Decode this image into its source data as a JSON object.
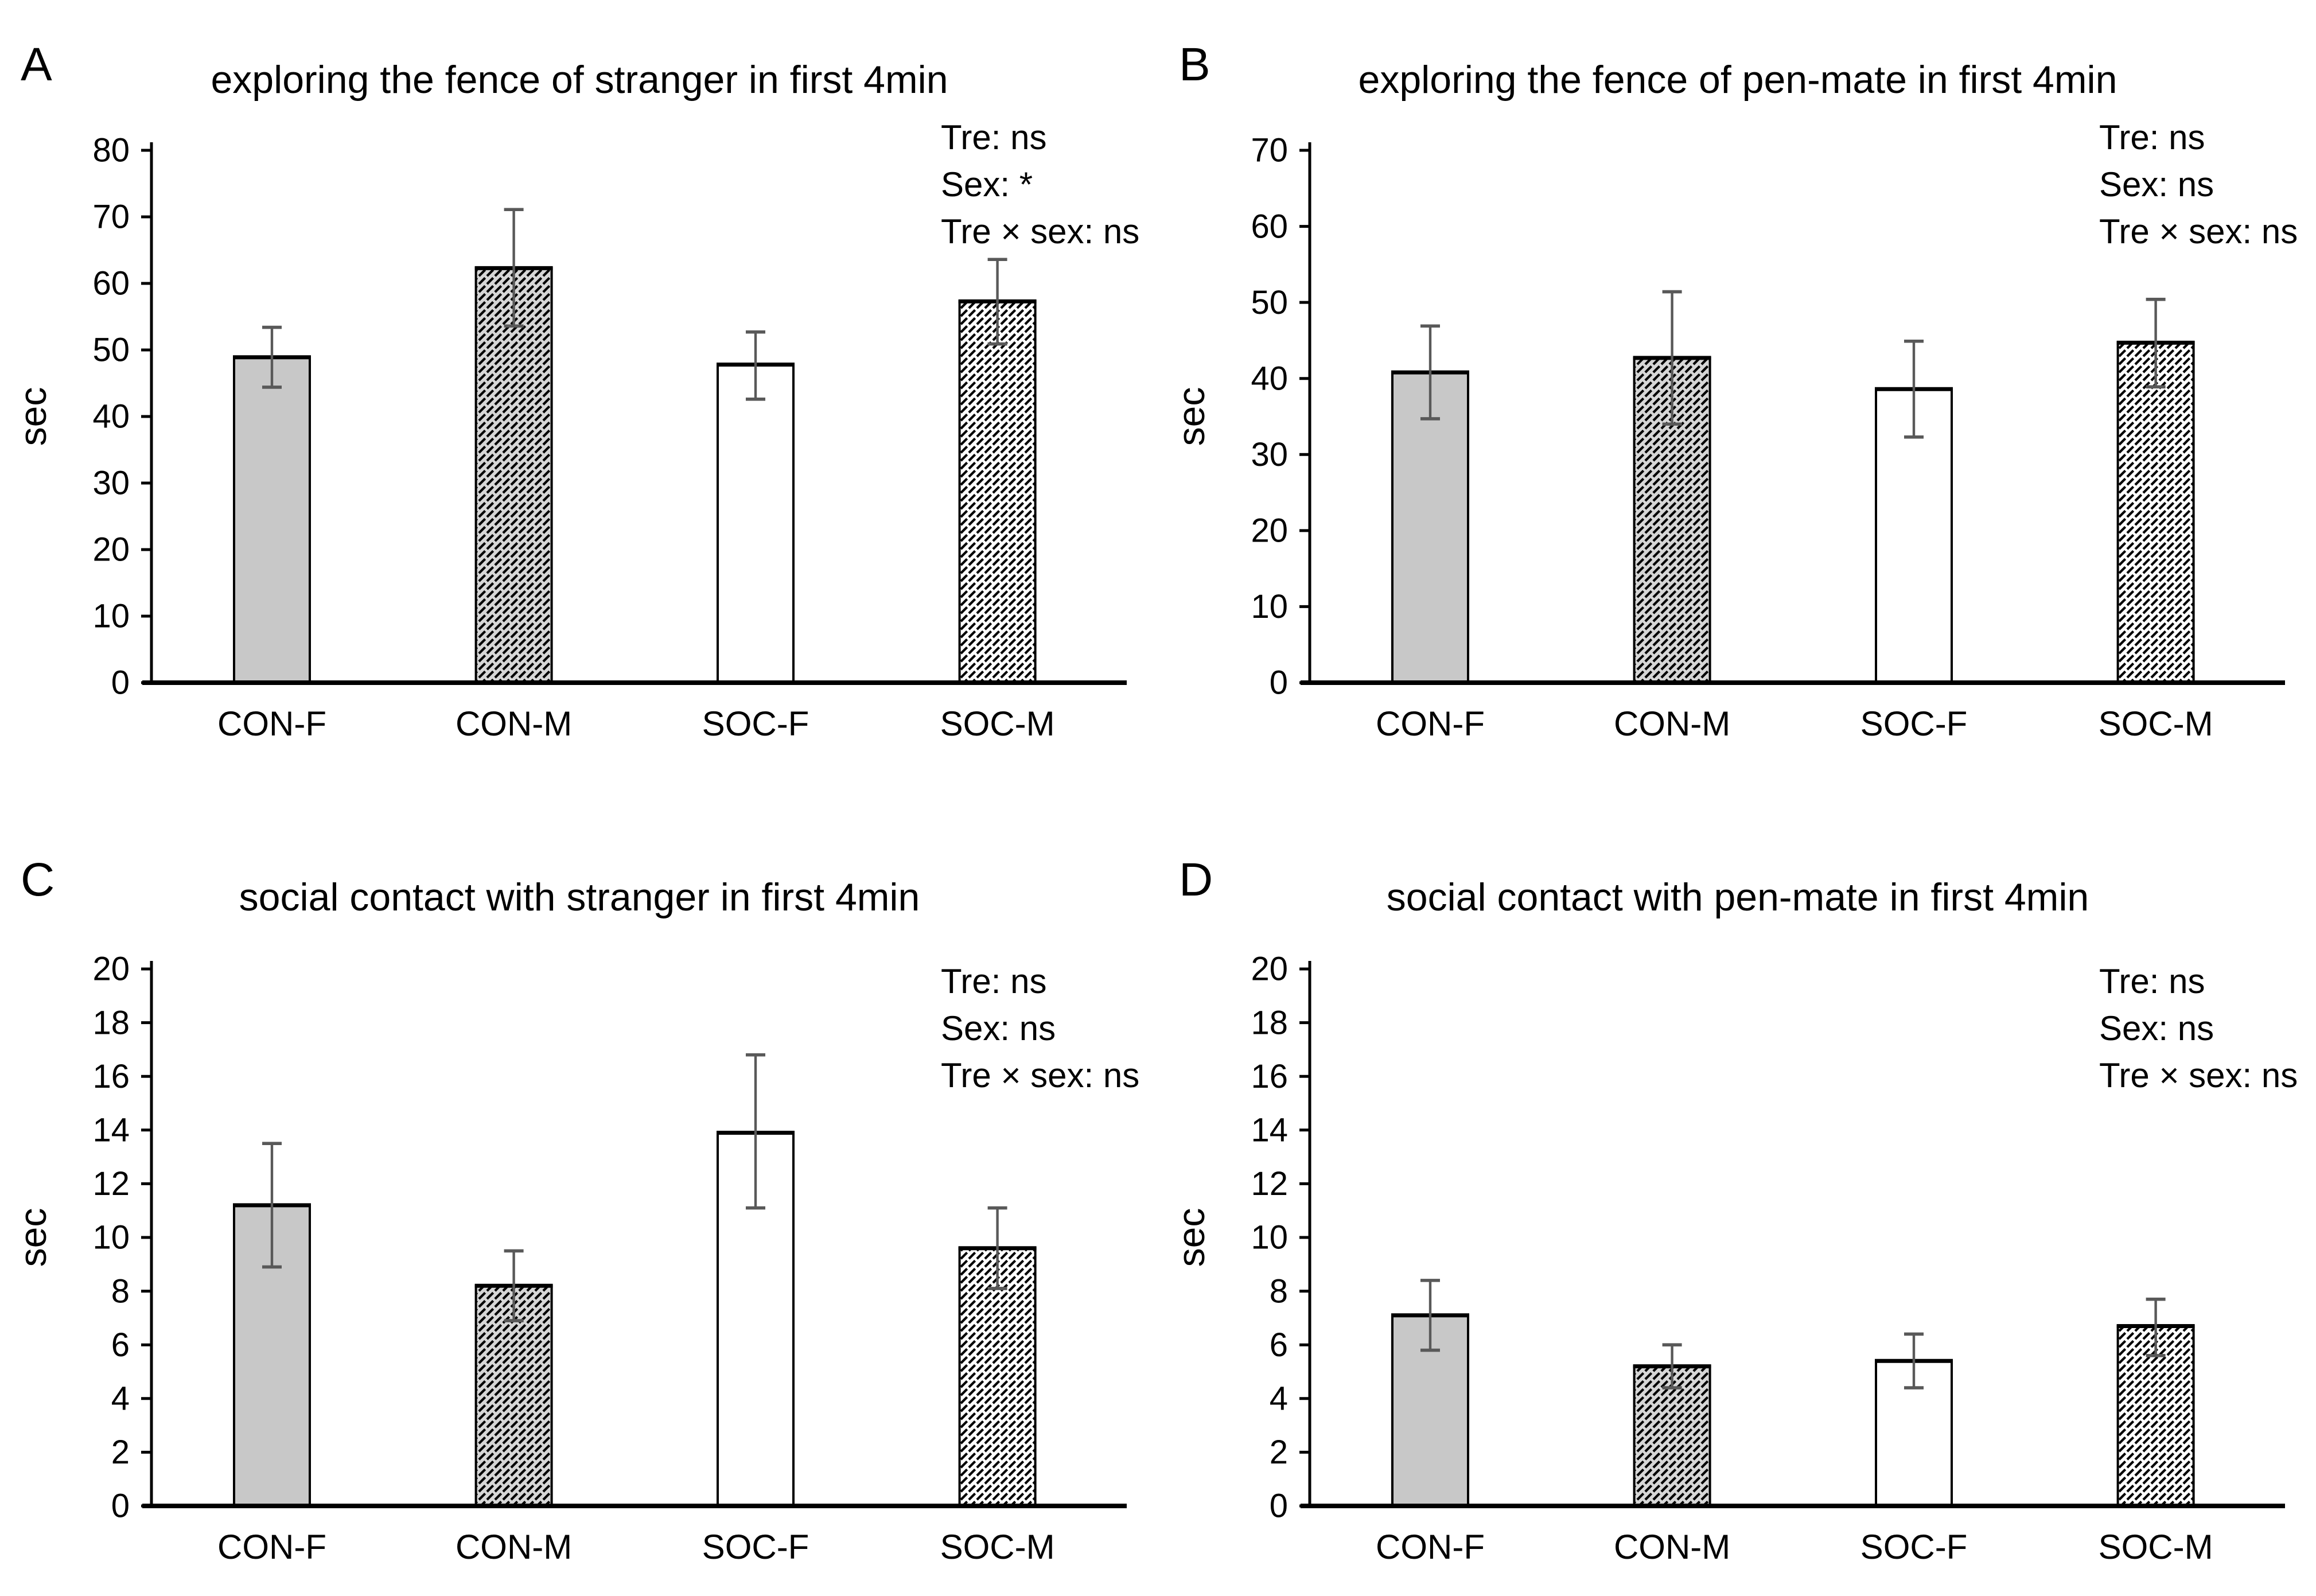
{
  "figure": {
    "background": "#ffffff",
    "ylabel_all": "sec",
    "categories_all": [
      "CON-F",
      "CON-M",
      "SOC-F",
      "SOC-M"
    ]
  },
  "colors": {
    "solid_gray_fill": "#c8c8c8",
    "hatch_gray_bg": "#d6d6d6",
    "hatch_white_bg": "#ffffff",
    "hatch_line": "#000000",
    "bar_outline": "#000000",
    "error_bar": "#595959",
    "axis": "#000000",
    "text": "#000000"
  },
  "chart_data": [
    {
      "type": "bar",
      "panel_letter": "A",
      "title": "exploring the fence of stranger in first 4min",
      "ylabel": "sec",
      "ylim": [
        0,
        80
      ],
      "ytick_labels": [
        "0",
        "10",
        "20",
        "30",
        "40",
        "50",
        "60",
        "70",
        "80"
      ],
      "grid": false,
      "legend_position": "none",
      "annotation_position": "top-right",
      "categories": [
        "CON-F",
        "CON-M",
        "SOC-F",
        "SOC-M"
      ],
      "values": [
        48.9,
        62.3,
        47.8,
        57.3
      ],
      "error_low": [
        44.4,
        53.6,
        42.6,
        50.9
      ],
      "error_high": [
        53.4,
        71.1,
        52.7,
        63.6
      ],
      "bar_styles": [
        "solid-gray",
        "hatched-gray",
        "white",
        "hatched-white"
      ],
      "annotations": [
        "Tre: ns",
        "Sex: *",
        "Tre × sex: ns"
      ]
    },
    {
      "type": "bar",
      "panel_letter": "B",
      "title": "exploring the fence of pen-mate in first 4min",
      "ylabel": "sec",
      "ylim": [
        0,
        70
      ],
      "ytick_labels": [
        "0",
        "10",
        "20",
        "30",
        "40",
        "50",
        "60",
        "70"
      ],
      "grid": false,
      "legend_position": "none",
      "annotation_position": "top-right",
      "categories": [
        "CON-F",
        "CON-M",
        "SOC-F",
        "SOC-M"
      ],
      "values": [
        40.8,
        42.7,
        38.6,
        44.7
      ],
      "error_low": [
        34.7,
        34.0,
        32.3,
        38.9
      ],
      "error_high": [
        46.9,
        51.4,
        44.9,
        50.4
      ],
      "bar_styles": [
        "solid-gray",
        "hatched-gray",
        "white",
        "hatched-white"
      ],
      "annotations": [
        "Tre: ns",
        "Sex: ns",
        "Tre × sex: ns"
      ]
    },
    {
      "type": "bar",
      "panel_letter": "C",
      "title": "social contact with stranger in first 4min",
      "ylabel": "sec",
      "ylim": [
        0,
        20
      ],
      "ytick_labels": [
        "0",
        "2",
        "4",
        "6",
        "8",
        "10",
        "12",
        "14",
        "16",
        "18",
        "20"
      ],
      "grid": false,
      "legend_position": "none",
      "annotation_position": "top-right",
      "categories": [
        "CON-F",
        "CON-M",
        "SOC-F",
        "SOC-M"
      ],
      "values": [
        11.2,
        8.2,
        13.9,
        9.6
      ],
      "error_low": [
        8.9,
        6.9,
        11.1,
        8.1
      ],
      "error_high": [
        13.5,
        9.5,
        16.8,
        11.1
      ],
      "bar_styles": [
        "solid-gray",
        "hatched-gray",
        "white",
        "hatched-white"
      ],
      "annotations": [
        "Tre: ns",
        "Sex: ns",
        "Tre × sex: ns"
      ]
    },
    {
      "type": "bar",
      "panel_letter": "D",
      "title": "social contact with pen-mate in first 4min",
      "ylabel": "sec",
      "ylim": [
        0,
        20
      ],
      "ytick_labels": [
        "0",
        "2",
        "4",
        "6",
        "8",
        "10",
        "12",
        "14",
        "16",
        "18",
        "20"
      ],
      "grid": false,
      "legend_position": "none",
      "annotation_position": "top-right",
      "categories": [
        "CON-F",
        "CON-M",
        "SOC-F",
        "SOC-M"
      ],
      "values": [
        7.1,
        5.2,
        5.4,
        6.7
      ],
      "error_low": [
        5.8,
        4.4,
        4.4,
        5.6
      ],
      "error_high": [
        8.4,
        6.0,
        6.4,
        7.7
      ],
      "bar_styles": [
        "solid-gray",
        "hatched-gray",
        "white",
        "hatched-white"
      ],
      "annotations": [
        "Tre: ns",
        "Sex: ns",
        "Tre × sex: ns"
      ]
    }
  ]
}
